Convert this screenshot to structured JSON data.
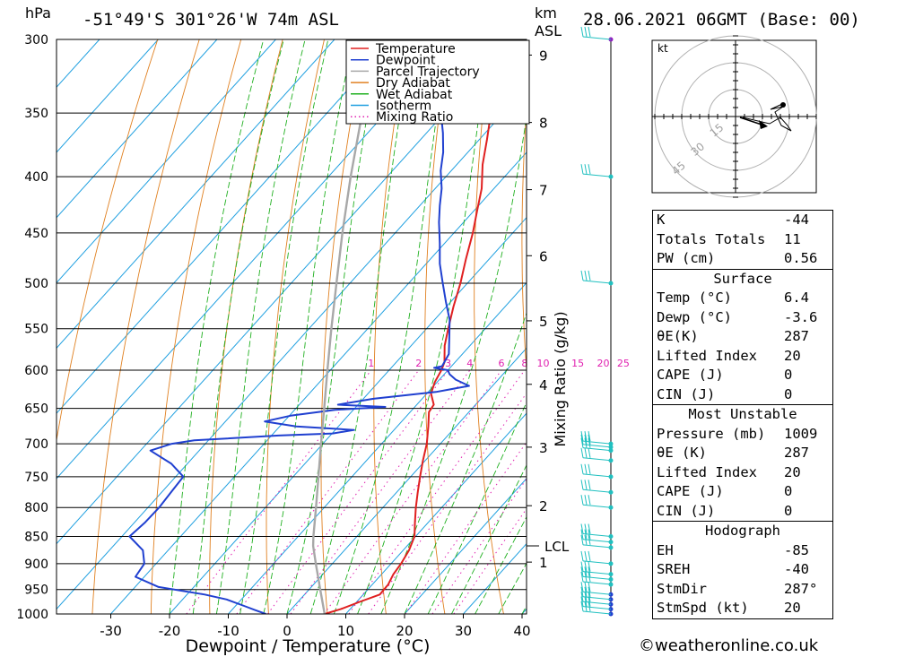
{
  "header": {
    "location": "-51°49'S  301°26'W  74m  ASL",
    "datetime": "28.06.2021  06GMT  (Base: 00)",
    "pressure_unit": "hPa",
    "height_unit": "km",
    "height_unit2": "ASL"
  },
  "chart_data": {
    "type": "line",
    "title": "",
    "xlabel": "Dewpoint / Temperature (°C)",
    "ylabel": "hPa",
    "y2label": "Mixing Ratio (g/kg)",
    "xlim": [
      -40,
      40
    ],
    "ylim": [
      1000,
      300
    ],
    "yscale": "log",
    "pressure_ticks": [
      300,
      350,
      400,
      450,
      500,
      550,
      600,
      650,
      700,
      750,
      800,
      850,
      900,
      950,
      1000
    ],
    "temp_ticks": [
      -30,
      -20,
      -10,
      0,
      10,
      20,
      30,
      40
    ],
    "km_ticks": [
      {
        "label": "9",
        "p": 310
      },
      {
        "label": "8",
        "p": 357
      },
      {
        "label": "7",
        "p": 411
      },
      {
        "label": "6",
        "p": 472
      },
      {
        "label": "5",
        "p": 541
      },
      {
        "label": "4",
        "p": 618
      },
      {
        "label": "3",
        "p": 705
      },
      {
        "label": "2",
        "p": 797
      },
      {
        "label": "1",
        "p": 897
      }
    ],
    "lcl": {
      "label": "LCL",
      "p": 867
    },
    "mixing_ratio_labels": [
      "1",
      "2",
      "3",
      "4",
      "6",
      "8",
      "10",
      "15",
      "20",
      "25"
    ],
    "legend": [
      {
        "name": "Temperature",
        "color": "#e02020",
        "style": "solid"
      },
      {
        "name": "Dewpoint",
        "color": "#2040d0",
        "style": "solid"
      },
      {
        "name": "Parcel Trajectory",
        "color": "#a8a8a8",
        "style": "solid"
      },
      {
        "name": "Dry Adiabat",
        "color": "#e08020",
        "style": "solid"
      },
      {
        "name": "Wet Adiabat",
        "color": "#20b020",
        "style": "solid"
      },
      {
        "name": "Isotherm",
        "color": "#20a0e0",
        "style": "solid"
      },
      {
        "name": "Mixing Ratio",
        "color": "#e020b0",
        "style": "dotted"
      }
    ],
    "legend_position": "top-right",
    "series": [
      {
        "name": "Temperature",
        "color": "#e02020",
        "points": [
          [
            1000,
            6.4
          ],
          [
            990,
            8.4
          ],
          [
            975,
            10.5
          ],
          [
            960,
            12.8
          ],
          [
            940,
            12.7
          ],
          [
            920,
            12.0
          ],
          [
            900,
            11.7
          ],
          [
            875,
            11.0
          ],
          [
            850,
            9.8
          ],
          [
            825,
            7.7
          ],
          [
            800,
            5.6
          ],
          [
            775,
            3.6
          ],
          [
            750,
            1.6
          ],
          [
            725,
            -0.4
          ],
          [
            700,
            -2.3
          ],
          [
            675,
            -4.7
          ],
          [
            655,
            -6.8
          ],
          [
            645,
            -7.1
          ],
          [
            630,
            -9.3
          ],
          [
            615,
            -10.4
          ],
          [
            600,
            -11.1
          ],
          [
            590,
            -11.8
          ],
          [
            570,
            -14.3
          ],
          [
            550,
            -16.3
          ],
          [
            525,
            -18.8
          ],
          [
            500,
            -21.2
          ],
          [
            475,
            -24.0
          ],
          [
            450,
            -26.8
          ],
          [
            430,
            -29.4
          ],
          [
            410,
            -32.1
          ],
          [
            390,
            -35.6
          ],
          [
            370,
            -38.7
          ],
          [
            350,
            -42.1
          ],
          [
            330,
            -46.7
          ],
          [
            315,
            -50.1
          ],
          [
            300,
            -53.7
          ]
        ]
      },
      {
        "name": "Dewpoint",
        "color": "#2040d0",
        "points": [
          [
            1000,
            -3.6
          ],
          [
            992,
            -6.0
          ],
          [
            985,
            -8.0
          ],
          [
            970,
            -12.5
          ],
          [
            960,
            -17.0
          ],
          [
            945,
            -26.0
          ],
          [
            925,
            -31.5
          ],
          [
            900,
            -32.0
          ],
          [
            875,
            -34.3
          ],
          [
            850,
            -38.7
          ],
          [
            825,
            -38.2
          ],
          [
            800,
            -38.1
          ],
          [
            775,
            -38.4
          ],
          [
            750,
            -38.7
          ],
          [
            730,
            -42.7
          ],
          [
            710,
            -48.3
          ],
          [
            700,
            -45.7
          ],
          [
            695,
            -42.4
          ],
          [
            688,
            -28.8
          ],
          [
            685,
            -19.9
          ],
          [
            680,
            -16.8
          ],
          [
            675,
            -27.2
          ],
          [
            668,
            -33.3
          ],
          [
            660,
            -29.8
          ],
          [
            652,
            -23.1
          ],
          [
            648,
            -15.0
          ],
          [
            645,
            -23.4
          ],
          [
            637,
            -18.3
          ],
          [
            632,
            -13.1
          ],
          [
            628,
            -8.7
          ],
          [
            620,
            -4.0
          ],
          [
            612,
            -7.2
          ],
          [
            605,
            -9.1
          ],
          [
            600,
            -10.0
          ],
          [
            597,
            -12.7
          ],
          [
            595,
            -11.6
          ],
          [
            580,
            -12.3
          ],
          [
            560,
            -14.8
          ],
          [
            540,
            -17.4
          ],
          [
            520,
            -20.8
          ],
          [
            500,
            -24.2
          ],
          [
            480,
            -27.7
          ],
          [
            460,
            -30.8
          ],
          [
            440,
            -34.2
          ],
          [
            425,
            -36.6
          ],
          [
            410,
            -38.9
          ],
          [
            395,
            -41.8
          ],
          [
            380,
            -44.2
          ],
          [
            365,
            -47.2
          ],
          [
            350,
            -50.6
          ],
          [
            335,
            -53.9
          ],
          [
            322,
            -55.2
          ],
          [
            315,
            -57.4
          ],
          [
            308,
            -57.2
          ],
          [
            300,
            -59.8
          ]
        ]
      },
      {
        "name": "Parcel Trajectory",
        "color": "#a8a8a8",
        "points": [
          [
            1000,
            6.4
          ],
          [
            950,
            1.9
          ],
          [
            900,
            -2.8
          ],
          [
            867,
            -6.0
          ],
          [
            850,
            -7.4
          ],
          [
            800,
            -11.4
          ],
          [
            750,
            -15.7
          ],
          [
            700,
            -20.3
          ],
          [
            650,
            -25.2
          ],
          [
            600,
            -30.5
          ],
          [
            550,
            -36.2
          ],
          [
            500,
            -42.3
          ],
          [
            450,
            -49.0
          ],
          [
            400,
            -56.2
          ],
          [
            350,
            -64.0
          ],
          [
            300,
            -72.5
          ]
        ]
      }
    ]
  },
  "hodograph": {
    "unit": "kt",
    "ring_labels": [
      "15",
      "30",
      "45"
    ]
  },
  "indices": {
    "top": [
      {
        "k": "K",
        "v": "-44"
      },
      {
        "k": "Totals Totals",
        "v": "11"
      },
      {
        "k": "PW (cm)",
        "v": "0.56"
      }
    ],
    "surface_title": "Surface",
    "surface": [
      {
        "k": "Temp (°C)",
        "v": "6.4"
      },
      {
        "k": "Dewp (°C)",
        "v": "-3.6"
      },
      {
        "k": "θE(K)",
        "v": "287"
      },
      {
        "k": "Lifted Index",
        "v": "20"
      },
      {
        "k": "CAPE (J)",
        "v": "0"
      },
      {
        "k": "CIN (J)",
        "v": "0"
      }
    ],
    "mu_title": "Most Unstable",
    "mu": [
      {
        "k": "Pressure (mb)",
        "v": "1009"
      },
      {
        "k": "θE (K)",
        "v": "287"
      },
      {
        "k": "Lifted Index",
        "v": "20"
      },
      {
        "k": "CAPE (J)",
        "v": "0"
      },
      {
        "k": "CIN (J)",
        "v": "0"
      }
    ],
    "hodo_title": "Hodograph",
    "hodo": [
      {
        "k": "EH",
        "v": "-85"
      },
      {
        "k": "SREH",
        "v": "-40"
      },
      {
        "k": "StmDir",
        "v": "287°"
      },
      {
        "k": "StmSpd (kt)",
        "v": "20"
      }
    ]
  },
  "footer": {
    "copyright": "©weatheronline.co.uk"
  },
  "colors": {
    "temperature": "#e02020",
    "dewpoint": "#2040d0",
    "parcel": "#a8a8a8",
    "dry_adiabat": "#e08020",
    "wet_adiabat": "#20b020",
    "isotherm": "#20a0e0",
    "mixing_ratio": "#e020b0",
    "wind_low": "#20c0c0",
    "wind_high": "#9020c0"
  }
}
